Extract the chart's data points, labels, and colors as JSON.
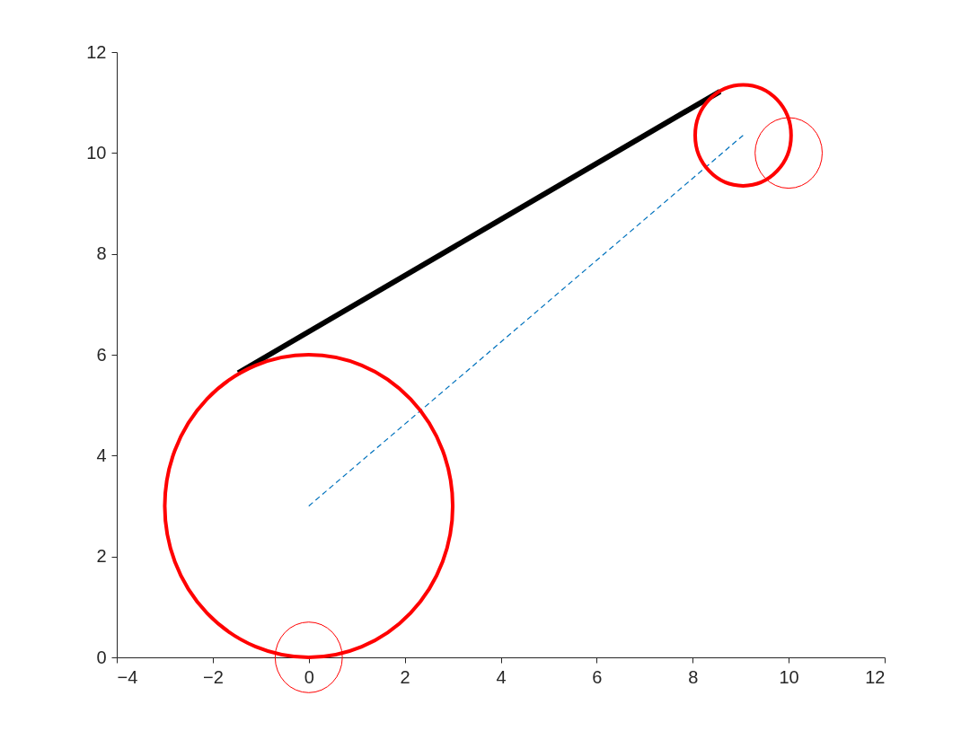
{
  "chart_data": {
    "type": "line",
    "xlim": [
      -4,
      12
    ],
    "ylim": [
      0,
      12
    ],
    "xticks": [
      -4,
      -2,
      0,
      2,
      4,
      6,
      8,
      10,
      12
    ],
    "yticks": [
      0,
      2,
      4,
      6,
      8,
      10,
      12
    ],
    "grid": false,
    "marker": "none",
    "series": [
      {
        "color": "#000000",
        "line_style": "solid",
        "x": [
          -1.47,
          8.57
        ],
        "values": [
          5.64,
          11.22
        ]
      },
      {
        "color": "#0072bd",
        "line_style": "dashed",
        "x": [
          0,
          9.05
        ],
        "values": [
          3,
          10.35
        ]
      }
    ]
  }
}
